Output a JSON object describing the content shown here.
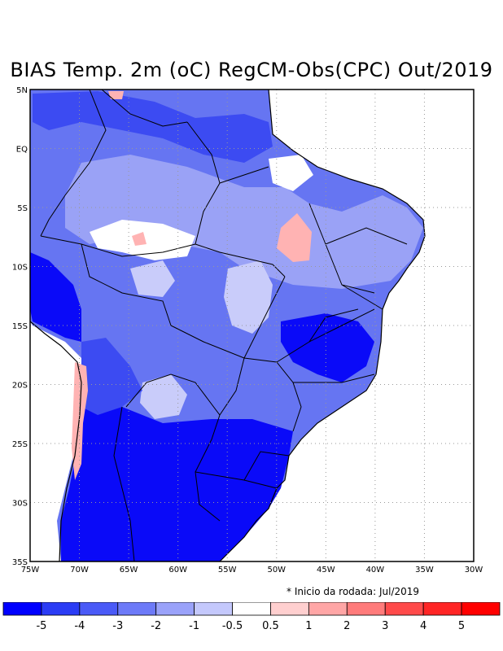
{
  "title": "BIAS Temp. 2m (oC) RegCM-Obs(CPC) Out/2019",
  "map": {
    "lat_ticks": [
      "5N",
      "EQ",
      "5S",
      "10S",
      "15S",
      "20S",
      "25S",
      "30S",
      "35S"
    ],
    "lon_ticks": [
      "75W",
      "70W",
      "65W",
      "60W",
      "55W",
      "50W",
      "45W",
      "40W",
      "35W",
      "30W"
    ],
    "lon_range": [
      -75,
      -30
    ],
    "lat_range": [
      -35,
      5
    ],
    "grid": "dotted"
  },
  "footnote": "* Inicio da rodada: Jul/2019",
  "colorbar": {
    "labels": [
      "-5",
      "-4",
      "-3",
      "-2",
      "-1",
      "-0.5",
      "0.5",
      "1",
      "2",
      "3",
      "4",
      "5"
    ],
    "colors": [
      "#0000ff",
      "#2b3cf5",
      "#4a5af7",
      "#6d7af8",
      "#9aa2fa",
      "#c4c8fc",
      "#ffffff",
      "#ffcfcf",
      "#ffa6a6",
      "#ff7b7b",
      "#ff4a4a",
      "#ff2525",
      "#ff0000"
    ]
  },
  "field_colors": {
    "strong_cold": "#0a0af8",
    "cold": "#3c4bf2",
    "moderate_cold": "#6675f2",
    "light_cold": "#9aa2f6",
    "slight_cold": "#c9ccfa",
    "neutral": "#ffffff",
    "warm": "#ffb3b3",
    "hot": "#ff8080"
  }
}
